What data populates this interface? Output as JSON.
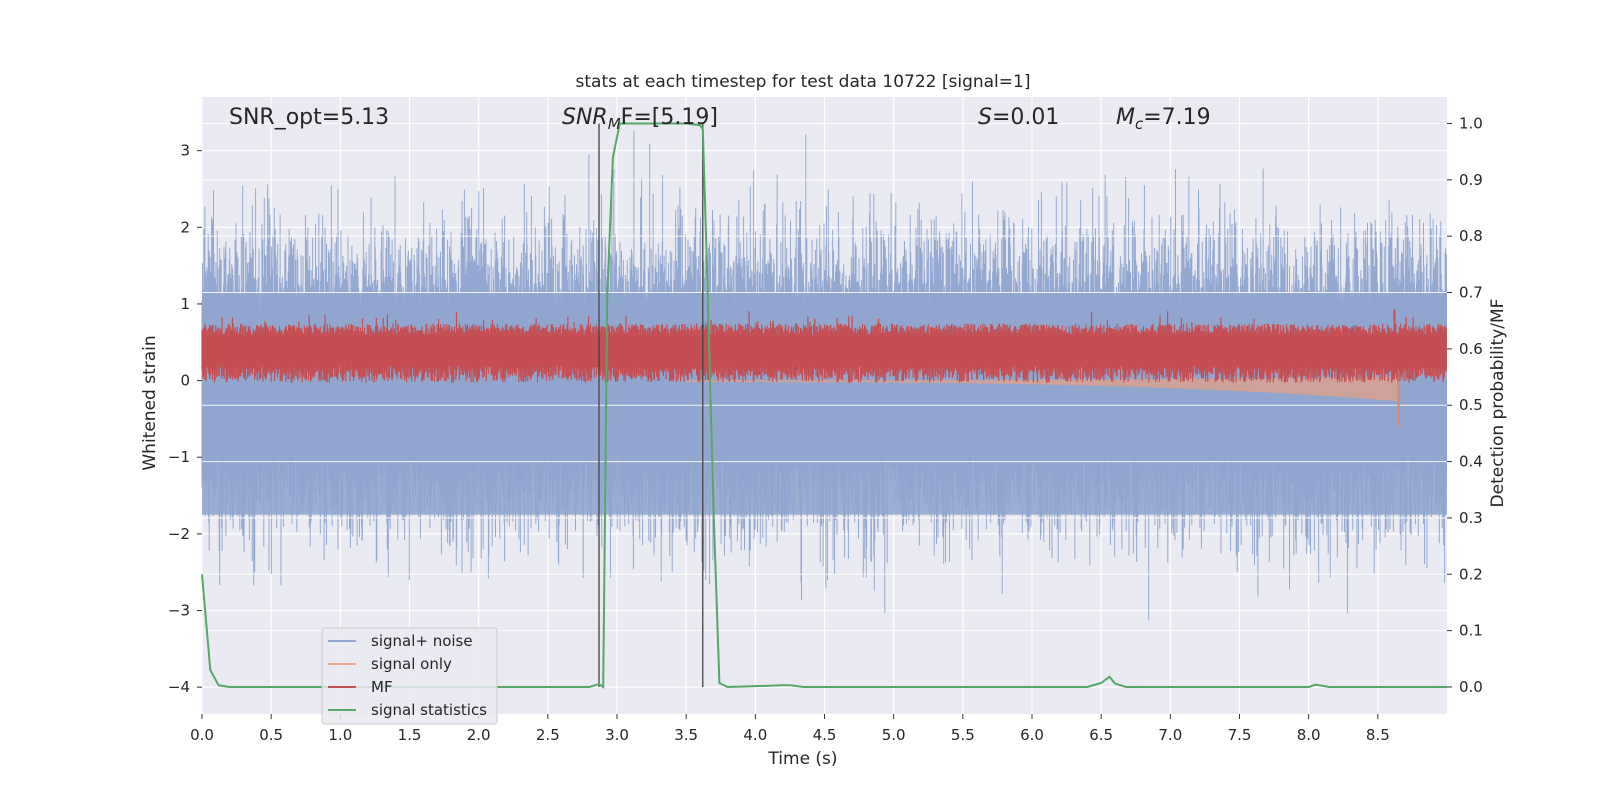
{
  "chart_data": {
    "type": "line",
    "title": "stats at each timestep for test data 10722 [signal=1]",
    "xlabel": "Time (s)",
    "ylabel_left": "Whitened strain",
    "ylabel_right": "Detection probability/MF",
    "xlim": [
      0.0,
      9.0
    ],
    "ylim_left": [
      -4.35,
      3.7
    ],
    "ylim_right": [
      -0.048,
      1.047
    ],
    "xticks": [
      "0.0",
      "0.5",
      "1.0",
      "1.5",
      "2.0",
      "2.5",
      "3.0",
      "3.5",
      "4.0",
      "4.5",
      "5.0",
      "5.5",
      "6.0",
      "6.5",
      "7.0",
      "7.5",
      "8.0",
      "8.5"
    ],
    "xtick_values": [
      0.0,
      0.5,
      1.0,
      1.5,
      2.0,
      2.5,
      3.0,
      3.5,
      4.0,
      4.5,
      5.0,
      5.5,
      6.0,
      6.5,
      7.0,
      7.5,
      8.0,
      8.5
    ],
    "yticks_left": [
      "3",
      "2",
      "1",
      "0",
      "−1",
      "−2",
      "−3",
      "−4"
    ],
    "ytick_values_left": [
      3,
      2,
      1,
      0,
      -1,
      -2,
      -3,
      -4
    ],
    "yticks_right": [
      "1.0",
      "0.9",
      "0.8",
      "0.7",
      "0.6",
      "0.5",
      "0.4",
      "0.3",
      "0.2",
      "0.1",
      "0.0"
    ],
    "ytick_values_right": [
      1.0,
      0.9,
      0.8,
      0.7,
      0.6,
      0.5,
      0.4,
      0.3,
      0.2,
      0.1,
      0.0
    ],
    "grid": true,
    "legend_position": "lower-left",
    "annotations": {
      "snr_opt": "SNR_opt=5.13",
      "snr_mf_base": "SNR",
      "snr_mf_sub": "M",
      "snr_mf_rest": "F=[5.19]",
      "s_label": "S",
      "s_rest": "=0.01",
      "mc_base": "M",
      "mc_sub": "c",
      "mc_rest": "=7.19"
    },
    "vlines": [
      2.87,
      3.62
    ],
    "series": [
      {
        "name": "signal+ noise",
        "color": "#8fa5cf",
        "axis": "left",
        "description_values": {
          "band_center": 0.0,
          "typical_amplitude": 1.8,
          "max": 3.35,
          "min": -3.55
        }
      },
      {
        "name": "signal only",
        "color": "#e8a88e",
        "axis": "left",
        "chirp": {
          "start_t": 3.5,
          "end_t": 8.65,
          "end_amplitude": 0.6
        }
      },
      {
        "name": "MF",
        "color": "#c44e52",
        "axis": "right",
        "band": {
          "low": 0.54,
          "high": 0.63,
          "peak": [
            8.62,
            0.67
          ]
        }
      },
      {
        "name": "signal statistics",
        "color": "#55a868",
        "axis": "right",
        "points": [
          [
            0.0,
            0.2
          ],
          [
            0.06,
            0.03
          ],
          [
            0.12,
            0.003
          ],
          [
            0.2,
            0.0
          ],
          [
            0.5,
            0.0
          ],
          [
            1.0,
            0.0
          ],
          [
            1.5,
            0.0
          ],
          [
            2.0,
            0.0
          ],
          [
            2.5,
            0.0
          ],
          [
            2.8,
            0.0
          ],
          [
            2.87,
            0.005
          ],
          [
            2.9,
            0.0
          ],
          [
            2.93,
            0.7
          ],
          [
            2.97,
            0.94
          ],
          [
            3.02,
            1.0
          ],
          [
            3.5,
            1.0
          ],
          [
            3.6,
            0.997
          ],
          [
            3.62,
            0.99
          ],
          [
            3.65,
            0.75
          ],
          [
            3.7,
            0.3
          ],
          [
            3.74,
            0.007
          ],
          [
            3.8,
            0.0
          ],
          [
            4.2,
            0.003
          ],
          [
            4.25,
            0.003
          ],
          [
            4.35,
            0.0
          ],
          [
            5.0,
            0.0
          ],
          [
            6.0,
            0.0
          ],
          [
            6.4,
            0.0
          ],
          [
            6.5,
            0.007
          ],
          [
            6.56,
            0.018
          ],
          [
            6.6,
            0.006
          ],
          [
            6.68,
            0.0
          ],
          [
            7.5,
            0.0
          ],
          [
            8.0,
            0.0
          ],
          [
            8.05,
            0.004
          ],
          [
            8.15,
            0.0
          ],
          [
            9.0,
            0.0
          ]
        ]
      }
    ]
  }
}
